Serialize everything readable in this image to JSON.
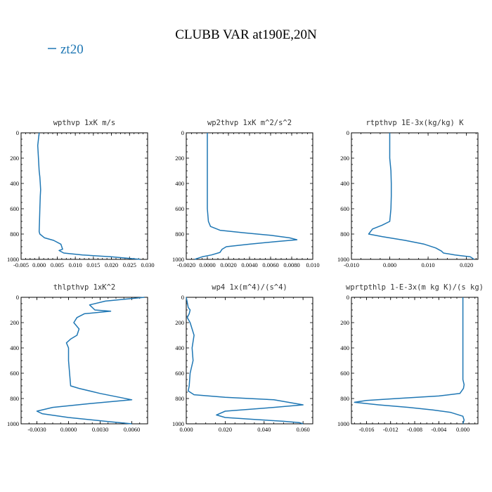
{
  "figure": {
    "title": "CLUBB VAR at190E,20N",
    "legend": {
      "label": "zt20",
      "color": "#1f77b4"
    }
  },
  "chart_data": [
    {
      "type": "line",
      "title": "wpthvp  1xK m/s",
      "xlim": [
        -0.005,
        0.03
      ],
      "ylim": [
        0,
        1000
      ],
      "y_inverted": true,
      "xticks": [
        "-0.005",
        "0.000",
        "0.005",
        "0.010",
        "0.015",
        "0.020",
        "0.025",
        "0.030"
      ],
      "yticks": [
        "0",
        "200",
        "400",
        "600",
        "800",
        "1000"
      ],
      "series": [
        {
          "x": [
            0.0,
            -0.0002,
            -0.0004,
            -0.0003,
            -0.0002,
            0.0,
            0.0002,
            0.0003,
            0.0004,
            0.0003,
            0.0002,
            0.0001,
            0.0,
            0.0002,
            0.0015,
            0.004,
            0.006,
            0.0065,
            0.0055,
            0.0068,
            0.012,
            0.02,
            0.028
          ],
          "y": [
            0,
            50,
            100,
            150,
            200,
            300,
            350,
            400,
            450,
            500,
            600,
            700,
            780,
            800,
            830,
            850,
            880,
            920,
            930,
            950,
            965,
            980,
            1000
          ]
        }
      ]
    },
    {
      "type": "line",
      "title": "wp2thvp  1xK m^2/s^2",
      "xlim": [
        -0.002,
        0.01
      ],
      "ylim": [
        0,
        1000
      ],
      "y_inverted": true,
      "xticks": [
        "-0.0020",
        "0.0000",
        "0.0020",
        "0.0040",
        "0.0060",
        "0.0080",
        "0.010"
      ],
      "yticks": [
        "0",
        "200",
        "400",
        "600",
        "800",
        "1000"
      ],
      "series": [
        {
          "x": [
            0.0,
            0.0,
            0.0,
            0.0,
            0.0,
            0.0,
            0.0,
            0.0001,
            0.0003,
            0.0012,
            0.0035,
            0.006,
            0.0078,
            0.0085,
            0.0065,
            0.004,
            0.0018,
            0.0014,
            0.0012,
            0.0004,
            -0.0005,
            -0.0012
          ],
          "y": [
            0,
            100,
            200,
            300,
            400,
            500,
            600,
            700,
            740,
            770,
            790,
            810,
            830,
            845,
            860,
            880,
            900,
            920,
            945,
            965,
            980,
            1000
          ]
        }
      ]
    },
    {
      "type": "line",
      "title": "rtpthvp  1E-3x(kg/kg) K",
      "xlim": [
        -0.01,
        0.023
      ],
      "ylim": [
        0,
        1000
      ],
      "y_inverted": true,
      "xticks": [
        "-0.010",
        "0.000",
        "0.010",
        "0.020"
      ],
      "yticks": [
        "0",
        "200",
        "400",
        "600",
        "800",
        "1000"
      ],
      "series": [
        {
          "x": [
            0.0,
            0.0,
            0.0,
            0.0003,
            0.0004,
            0.0004,
            0.0003,
            0.0,
            -0.002,
            -0.0045,
            -0.0055,
            -0.002,
            0.004,
            0.009,
            0.012,
            0.0135,
            0.014,
            0.017,
            0.021,
            0.022
          ],
          "y": [
            0,
            100,
            200,
            300,
            400,
            500,
            600,
            700,
            730,
            760,
            800,
            820,
            850,
            880,
            910,
            935,
            950,
            965,
            980,
            1000
          ]
        }
      ]
    },
    {
      "type": "line",
      "title": "thlpthvp  1xK^2",
      "xlim": [
        -0.0045,
        0.0075
      ],
      "ylim": [
        0,
        1000
      ],
      "y_inverted": true,
      "xticks": [
        "-0.0030",
        "0.0000",
        "0.0030",
        "0.0060"
      ],
      "yticks": [
        "0",
        "200",
        "400",
        "600",
        "800",
        "1000"
      ],
      "series": [
        {
          "x": [
            0.0072,
            0.0035,
            0.002,
            0.0025,
            0.004,
            0.0015,
            0.0008,
            0.0005,
            0.001,
            0.0008,
            0.0002,
            -0.0002,
            0.0,
            0.0,
            0.0,
            0.0001,
            0.0002,
            0.001,
            0.003,
            0.0048,
            0.006,
            0.002,
            -0.0015,
            -0.003,
            -0.0025,
            0.0,
            0.0035,
            0.006
          ],
          "y": [
            0,
            30,
            60,
            100,
            110,
            130,
            160,
            200,
            250,
            300,
            330,
            360,
            400,
            450,
            500,
            600,
            700,
            720,
            760,
            790,
            810,
            840,
            870,
            900,
            920,
            950,
            980,
            1000
          ]
        }
      ]
    },
    {
      "type": "line",
      "title": "wp4  1x(m^4)/(s^4)",
      "xlim": [
        0.0,
        0.065
      ],
      "ylim": [
        0,
        1000
      ],
      "y_inverted": true,
      "xticks": [
        "0.000",
        "0.020",
        "0.040",
        "0.060"
      ],
      "yticks": [
        "0",
        "200",
        "400",
        "600",
        "800",
        "1000"
      ],
      "series": [
        {
          "x": [
            0.0,
            0.001,
            0.002,
            0.0015,
            0.0005,
            0.002,
            0.004,
            0.003,
            0.0035,
            0.002,
            0.0015,
            0.001,
            0.004,
            0.02,
            0.045,
            0.06,
            0.045,
            0.02,
            0.0155,
            0.02,
            0.035,
            0.05,
            0.058,
            0.06
          ],
          "y": [
            0,
            80,
            100,
            130,
            160,
            200,
            300,
            400,
            500,
            600,
            700,
            740,
            770,
            790,
            810,
            850,
            870,
            900,
            930,
            950,
            965,
            980,
            990,
            1000
          ]
        }
      ]
    },
    {
      "type": "line",
      "title": "wprtpthlp  1-E-3x(m kg K)/(s kg)",
      "xlim": [
        -0.0185,
        0.0025
      ],
      "ylim": [
        0,
        1000
      ],
      "y_inverted": true,
      "xticks": [
        "-0.016",
        "-0.012",
        "-0.008",
        "-0.004",
        "0.000"
      ],
      "yticks": [
        "0",
        "200",
        "400",
        "600",
        "800",
        "1000"
      ],
      "series": [
        {
          "x": [
            0.0,
            0.0,
            0.0,
            0.0,
            0.0,
            0.0002,
            0.0001,
            -0.0005,
            -0.004,
            -0.011,
            -0.016,
            -0.018,
            -0.014,
            -0.009,
            -0.005,
            -0.002,
            0.0,
            0.0002,
            0.0
          ],
          "y": [
            0,
            200,
            400,
            600,
            650,
            690,
            720,
            760,
            780,
            800,
            815,
            830,
            850,
            870,
            890,
            910,
            940,
            970,
            1000
          ]
        }
      ]
    }
  ]
}
